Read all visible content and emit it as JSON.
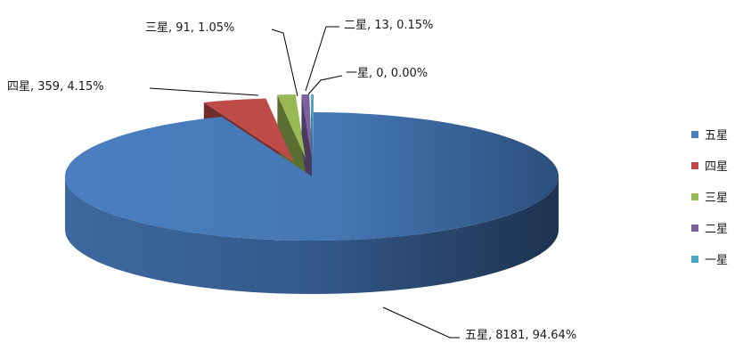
{
  "chart_data": {
    "type": "pie",
    "style": "3d-exploded",
    "categories": [
      "五星",
      "四星",
      "三星",
      "二星",
      "一星"
    ],
    "values": [
      8181,
      359,
      91,
      13,
      0
    ],
    "percentages": [
      "94.64%",
      "4.15%",
      "1.05%",
      "0.15%",
      "0.00%"
    ],
    "data_labels": [
      "五星, 8181, 94.64%",
      "四星, 359, 4.15%",
      "三星, 91, 1.05%",
      "二星, 13, 0.15%",
      "一星, 0, 0.00%"
    ],
    "colors": [
      "#4a7ebb",
      "#be4b48",
      "#98b954",
      "#7d60a0",
      "#46aac5"
    ],
    "legend_position": "right",
    "legend": [
      "五星",
      "四星",
      "三星",
      "二星",
      "一星"
    ]
  }
}
